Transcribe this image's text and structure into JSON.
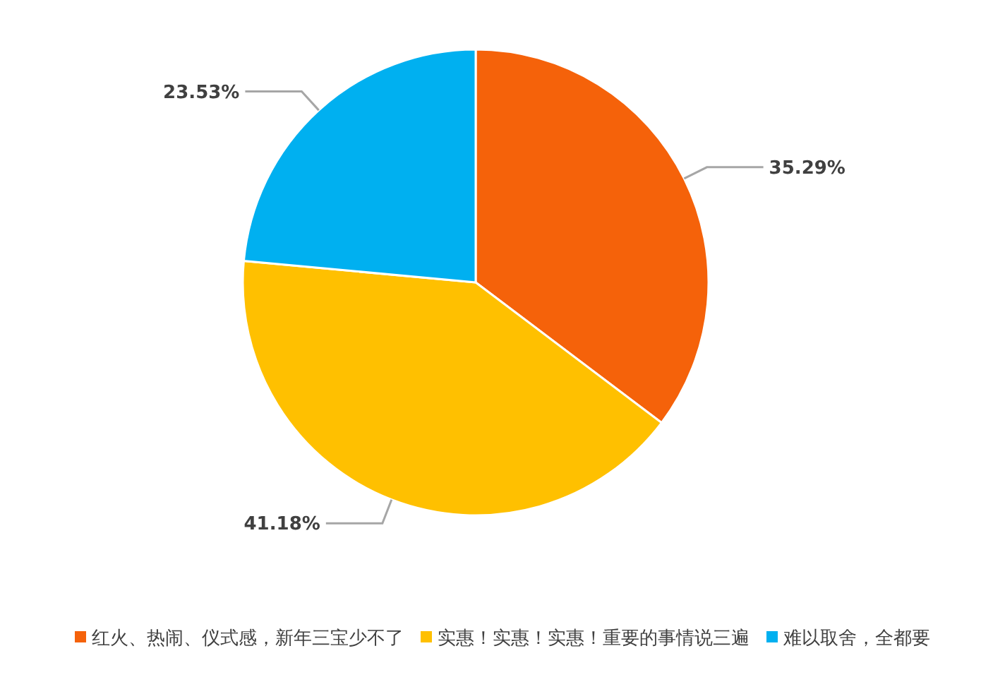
{
  "chart_data": {
    "type": "pie",
    "categories": [
      "红火、热闹、仪式感，新年三宝少不了",
      "实惠！实惠！实惠！重要的事情说三遍",
      "难以取舍，全都要"
    ],
    "values": [
      35.29,
      41.18,
      23.53
    ],
    "colors": [
      "#f5620a",
      "#ffc000",
      "#00b0f0"
    ],
    "value_labels": [
      "35.29%",
      "41.18%",
      "23.53%"
    ],
    "legend": "bottom"
  }
}
